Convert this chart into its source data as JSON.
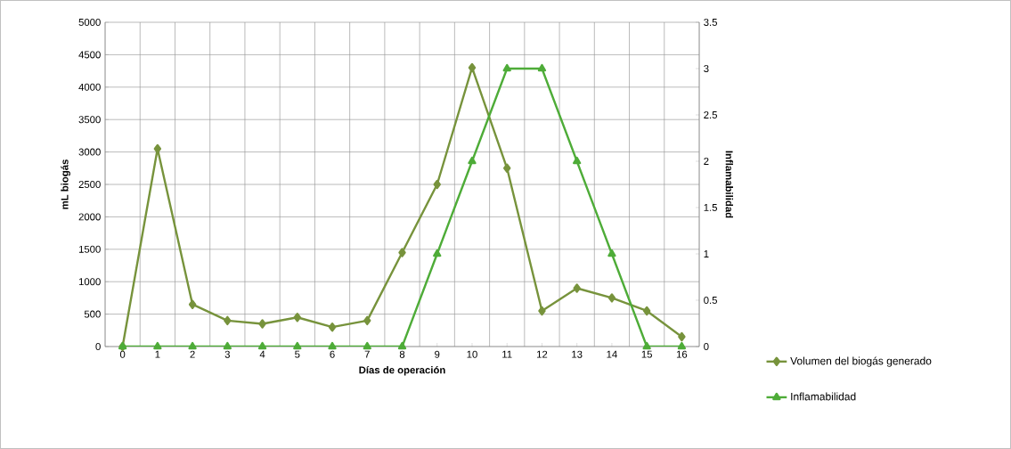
{
  "chart_data": {
    "type": "line",
    "xlabel": "Días de operación",
    "ylabel": "mL biogás",
    "y2label": "Inflamabilidad",
    "categories": [
      "0",
      "1",
      "2",
      "3",
      "4",
      "5",
      "6",
      "7",
      "8",
      "9",
      "10",
      "11",
      "12",
      "13",
      "14",
      "15",
      "16"
    ],
    "series": [
      {
        "name": "Volumen del biogás generado",
        "color": "#77933c",
        "marker": "diamond",
        "values": [
          0,
          3050,
          650,
          400,
          350,
          450,
          300,
          400,
          1450,
          2500,
          4300,
          2750,
          550,
          900,
          750,
          550,
          150
        ]
      },
      {
        "name": "Inflamabilidad",
        "color": "#4eac38",
        "marker": "triangle",
        "axis": "y2",
        "values": [
          0,
          0,
          0,
          0,
          0,
          0,
          0,
          0,
          0,
          1,
          2,
          3,
          3,
          2,
          1,
          0,
          0
        ]
      }
    ],
    "ylim": [
      0,
      5000
    ],
    "yticks": [
      0,
      500,
      1000,
      1500,
      2000,
      2500,
      3000,
      3500,
      4000,
      4500,
      5000
    ],
    "y2lim": [
      0,
      3.5
    ],
    "y2ticks": [
      0,
      0.5,
      1,
      1.5,
      2,
      2.5,
      3,
      3.5
    ],
    "grid": true,
    "legend": "right",
    "line_style": "solid"
  }
}
